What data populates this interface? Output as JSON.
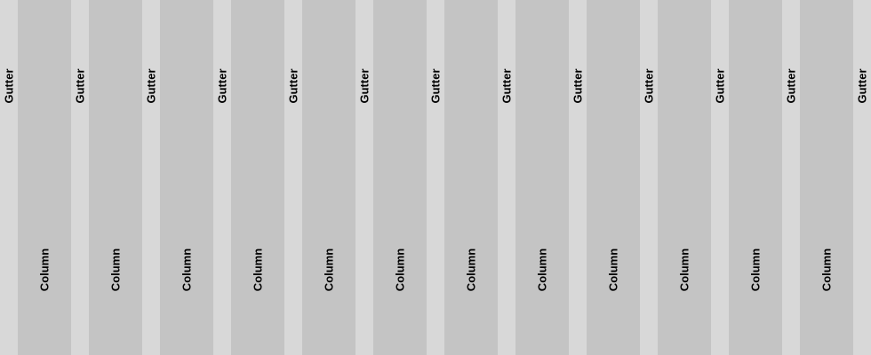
{
  "grid": {
    "column_label": "Column",
    "gutter_label": "Gutter",
    "column_count": 12,
    "gutter_count": 13,
    "colors": {
      "gutter": "#d8d8d8",
      "column": "#c4c4c4",
      "label": "#000000"
    }
  }
}
